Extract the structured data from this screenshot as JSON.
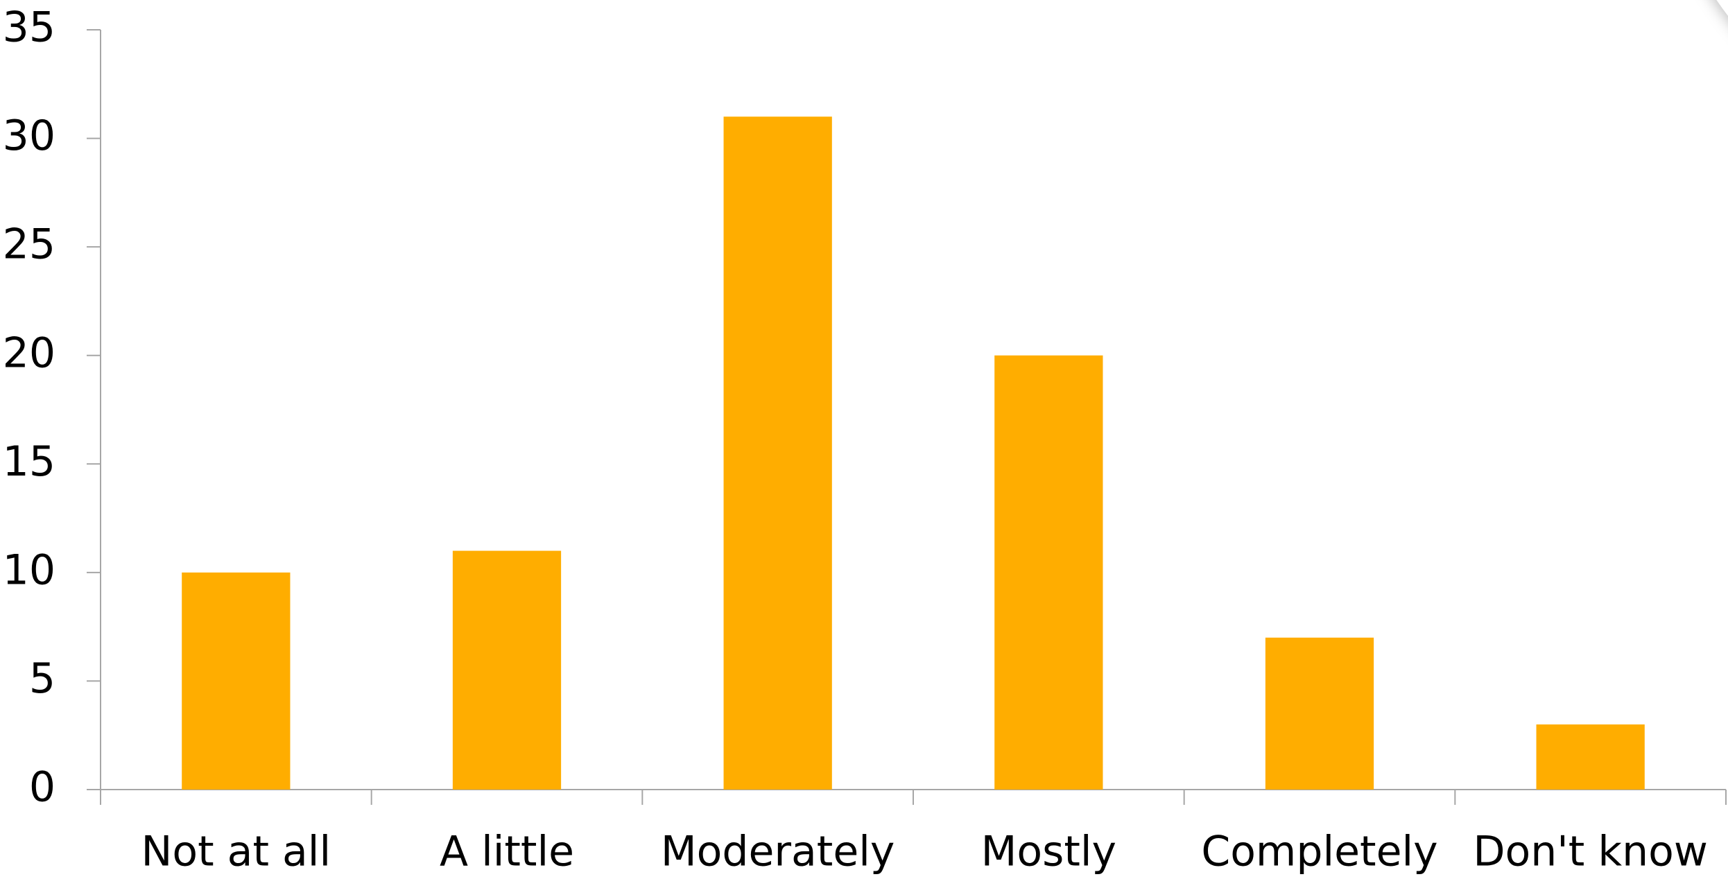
{
  "chart_data": {
    "type": "bar",
    "categories": [
      "Not at all",
      "A little",
      "Moderately",
      "Mostly",
      "Completely",
      "Don't know"
    ],
    "values": [
      10,
      11,
      31,
      20,
      7,
      3
    ],
    "color": "#ffad00",
    "ylim": [
      0,
      35
    ],
    "yticks": [
      0,
      5,
      10,
      15,
      20,
      25,
      30,
      35
    ],
    "grid": false
  }
}
